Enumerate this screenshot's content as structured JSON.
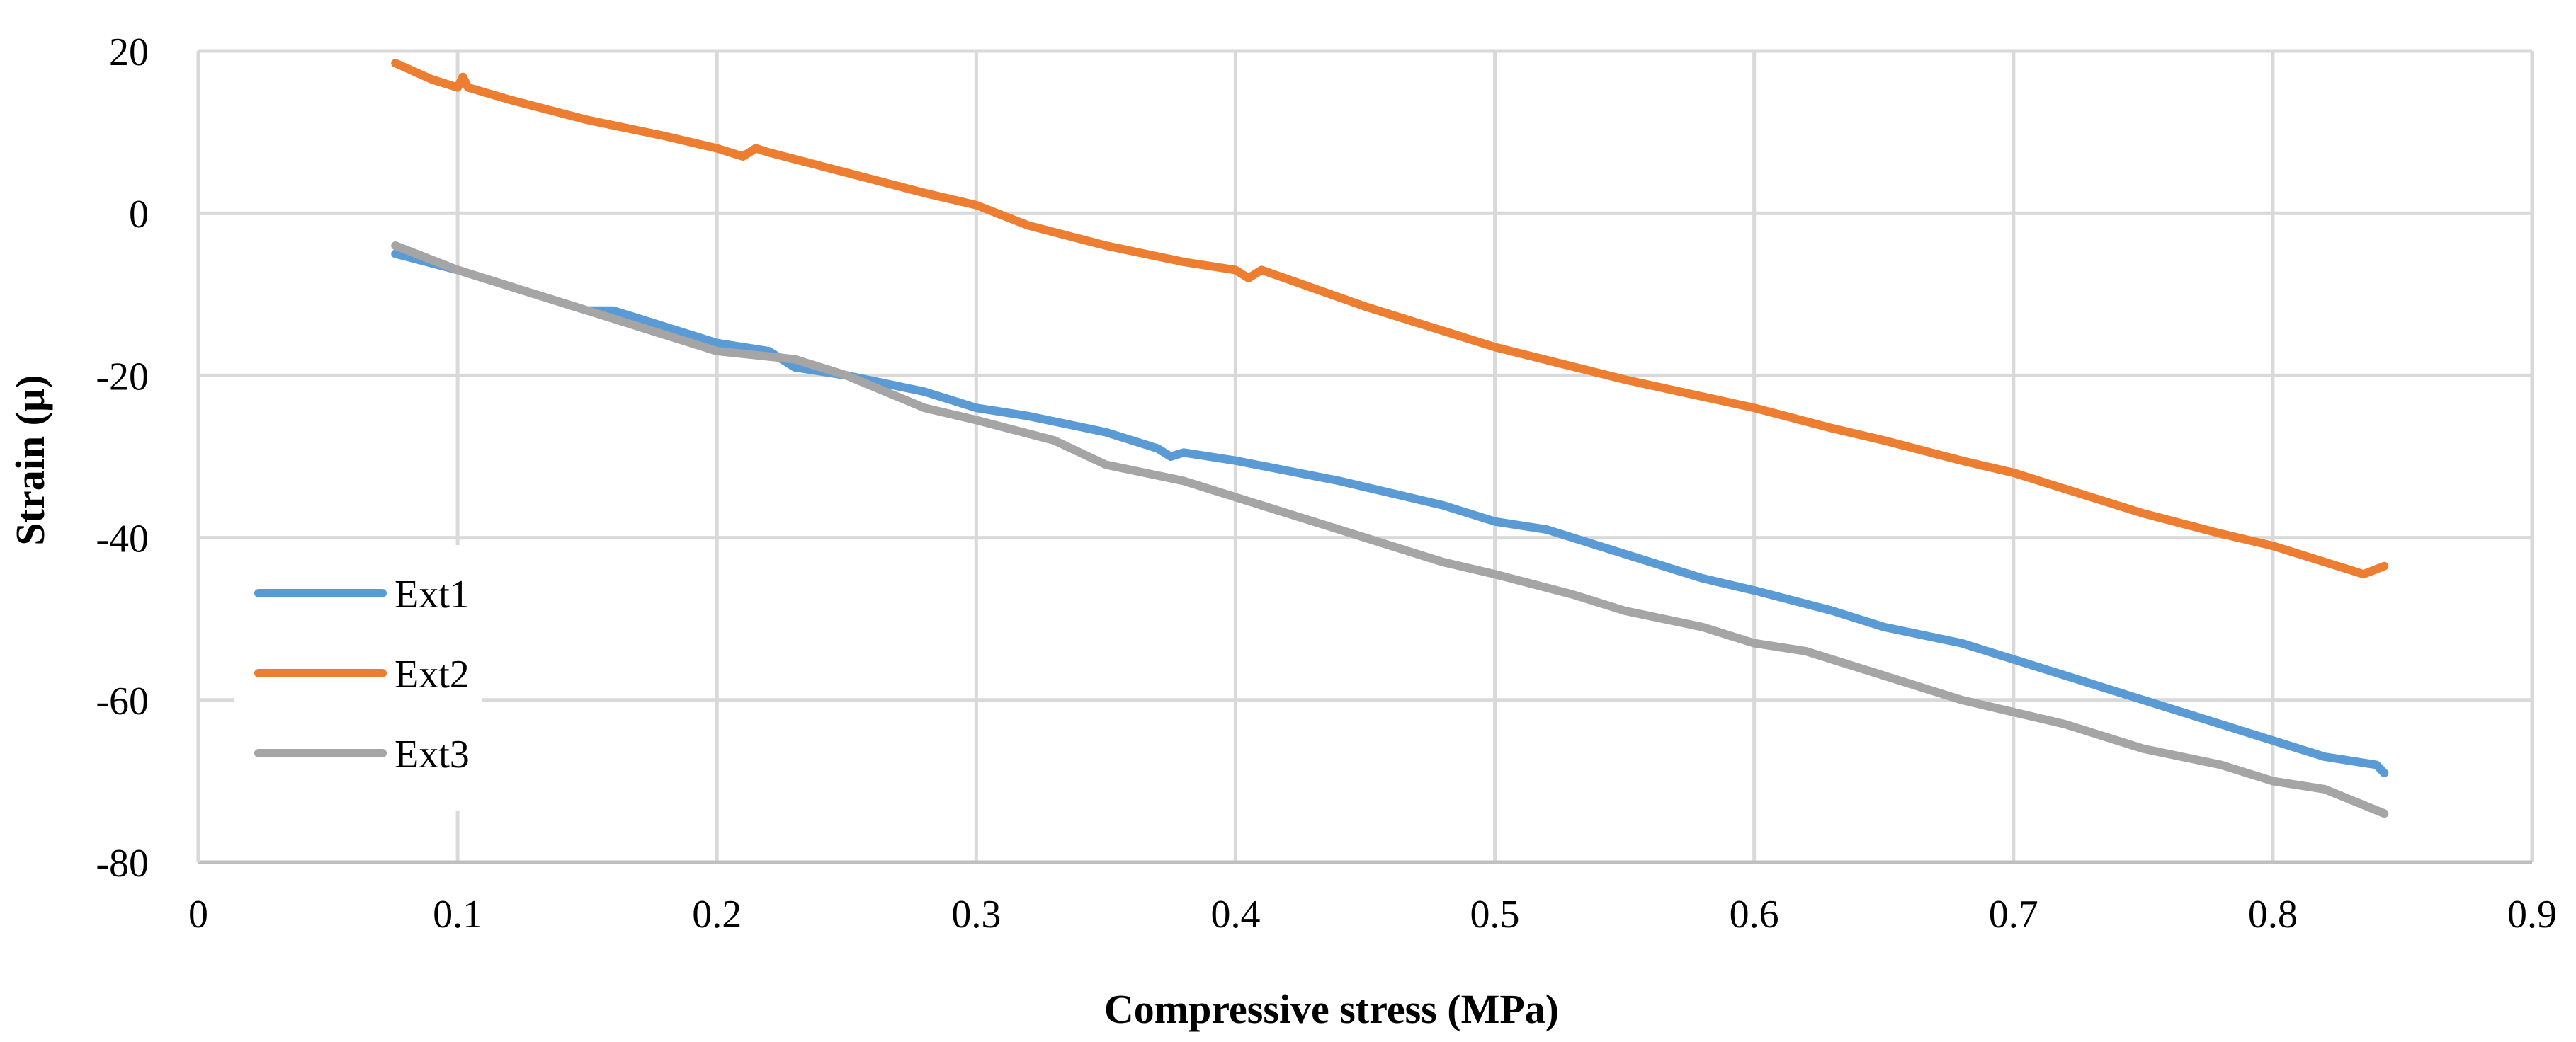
{
  "chart_data": {
    "type": "line",
    "title": "",
    "xlabel": "Compressive stress (MPa)",
    "ylabel": "Strain (µ)",
    "xlim": [
      0,
      0.9
    ],
    "ylim": [
      -80,
      20
    ],
    "x_ticks": [
      0,
      0.1,
      0.2,
      0.3,
      0.4,
      0.5,
      0.6,
      0.7,
      0.8,
      0.9
    ],
    "x_tick_labels": [
      "0",
      "0.1",
      "0.2",
      "0.3",
      "0.4",
      "0.5",
      "0.6",
      "0.7",
      "0.8",
      "0.9"
    ],
    "y_ticks": [
      20,
      0,
      -20,
      -40,
      -60,
      -80
    ],
    "y_tick_labels": [
      "20",
      "0",
      "-20",
      "-40",
      "-60",
      "-80"
    ],
    "grid": true,
    "legend_position": "left",
    "series": [
      {
        "name": "Ext1",
        "color": "#5B9BD5",
        "x": [
          0.076,
          0.1,
          0.13,
          0.15,
          0.16,
          0.18,
          0.2,
          0.22,
          0.23,
          0.25,
          0.28,
          0.3,
          0.32,
          0.35,
          0.37,
          0.375,
          0.38,
          0.4,
          0.44,
          0.48,
          0.5,
          0.52,
          0.55,
          0.58,
          0.6,
          0.63,
          0.65,
          0.68,
          0.7,
          0.72,
          0.75,
          0.78,
          0.8,
          0.82,
          0.84,
          0.843
        ],
        "values": [
          -5,
          -7,
          -10,
          -12,
          -12,
          -14,
          -16,
          -17,
          -19,
          -20,
          -22,
          -24,
          -25,
          -27,
          -29,
          -30,
          -29.5,
          -30.5,
          -33,
          -36,
          -38,
          -39,
          -42,
          -45,
          -46.5,
          -49,
          -51,
          -53,
          -55,
          -57,
          -60,
          -63,
          -65,
          -67,
          -68,
          -69
        ]
      },
      {
        "name": "Ext2",
        "color": "#ED7D31",
        "x": [
          0.076,
          0.09,
          0.1,
          0.102,
          0.104,
          0.12,
          0.15,
          0.18,
          0.2,
          0.21,
          0.215,
          0.22,
          0.25,
          0.28,
          0.3,
          0.32,
          0.35,
          0.38,
          0.4,
          0.405,
          0.41,
          0.45,
          0.5,
          0.55,
          0.6,
          0.63,
          0.65,
          0.68,
          0.7,
          0.72,
          0.75,
          0.78,
          0.8,
          0.81,
          0.83,
          0.835,
          0.843
        ],
        "values": [
          18.5,
          16.5,
          15.5,
          16.8,
          15.5,
          14,
          11.5,
          9.5,
          8,
          7,
          8,
          7.5,
          5,
          2.5,
          1,
          -1.5,
          -4,
          -6,
          -7,
          -8,
          -7,
          -11.5,
          -16.5,
          -20.5,
          -24,
          -26.5,
          -28,
          -30.5,
          -32,
          -34,
          -37,
          -39.5,
          -41,
          -42,
          -44,
          -44.5,
          -43.5
        ]
      },
      {
        "name": "Ext3",
        "color": "#A5A5A5",
        "x": [
          0.076,
          0.1,
          0.13,
          0.15,
          0.18,
          0.2,
          0.23,
          0.25,
          0.28,
          0.3,
          0.33,
          0.35,
          0.38,
          0.4,
          0.43,
          0.45,
          0.48,
          0.5,
          0.53,
          0.55,
          0.58,
          0.6,
          0.62,
          0.65,
          0.68,
          0.7,
          0.72,
          0.75,
          0.78,
          0.8,
          0.82,
          0.843
        ],
        "values": [
          -4,
          -7,
          -10,
          -12,
          -15,
          -17,
          -18,
          -20,
          -24,
          -25.5,
          -28,
          -31,
          -33,
          -35,
          -38,
          -40,
          -43,
          -44.5,
          -47,
          -49,
          -51,
          -53,
          -54,
          -57,
          -60,
          -61.5,
          -63,
          -66,
          -68,
          -70,
          -71,
          -74
        ]
      }
    ]
  }
}
